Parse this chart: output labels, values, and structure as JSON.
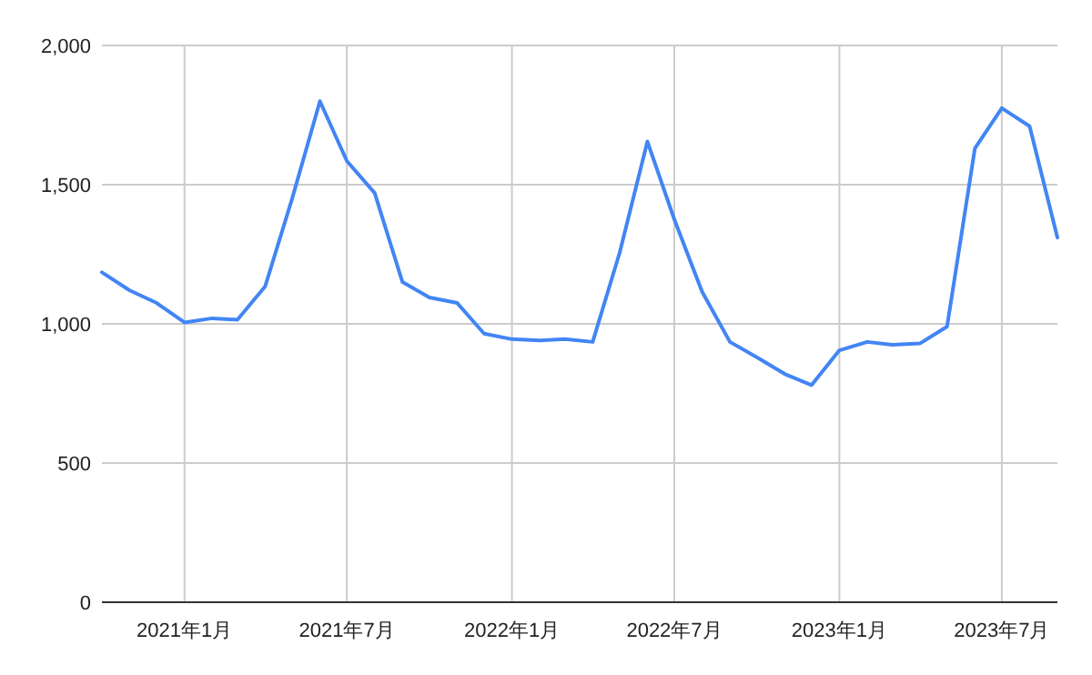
{
  "chart_data": {
    "type": "line",
    "color": "#4285f4",
    "grid": true,
    "marker": "none",
    "line_style": "solid",
    "x": [
      "2020-10",
      "2020-11",
      "2020-12",
      "2021-01",
      "2021-02",
      "2021-03",
      "2021-04",
      "2021-05",
      "2021-06",
      "2021-07",
      "2021-08",
      "2021-09",
      "2021-10",
      "2021-11",
      "2021-12",
      "2022-01",
      "2022-02",
      "2022-03",
      "2022-04",
      "2022-05",
      "2022-06",
      "2022-07",
      "2022-08",
      "2022-09",
      "2022-10",
      "2022-11",
      "2022-12",
      "2023-01",
      "2023-02",
      "2023-03",
      "2023-04",
      "2023-05",
      "2023-06",
      "2023-07",
      "2023-08",
      "2023-09"
    ],
    "values": [
      1185,
      1120,
      1075,
      1005,
      1020,
      1015,
      1135,
      1450,
      1800,
      1585,
      1470,
      1150,
      1095,
      1075,
      965,
      945,
      940,
      945,
      935,
      1255,
      1655,
      1375,
      1115,
      935,
      880,
      820,
      780,
      905,
      935,
      925,
      930,
      990,
      1630,
      1775,
      1710,
      1310
    ],
    "xlim": [
      "2020-10",
      "2023-09"
    ],
    "xticks": [
      {
        "value": "2021-01",
        "label": "2021年1月"
      },
      {
        "value": "2021-07",
        "label": "2021年7月"
      },
      {
        "value": "2022-01",
        "label": "2022年1月"
      },
      {
        "value": "2022-07",
        "label": "2022年7月"
      },
      {
        "value": "2023-01",
        "label": "2023年1月"
      },
      {
        "value": "2023-07",
        "label": "2023年7月"
      }
    ],
    "ylim": [
      0,
      2000
    ],
    "yticks": [
      {
        "value": 0,
        "label": "0"
      },
      {
        "value": 500,
        "label": "500"
      },
      {
        "value": 1000,
        "label": "1,000"
      },
      {
        "value": 1500,
        "label": "1,500"
      },
      {
        "value": 2000,
        "label": "2,000"
      }
    ]
  }
}
